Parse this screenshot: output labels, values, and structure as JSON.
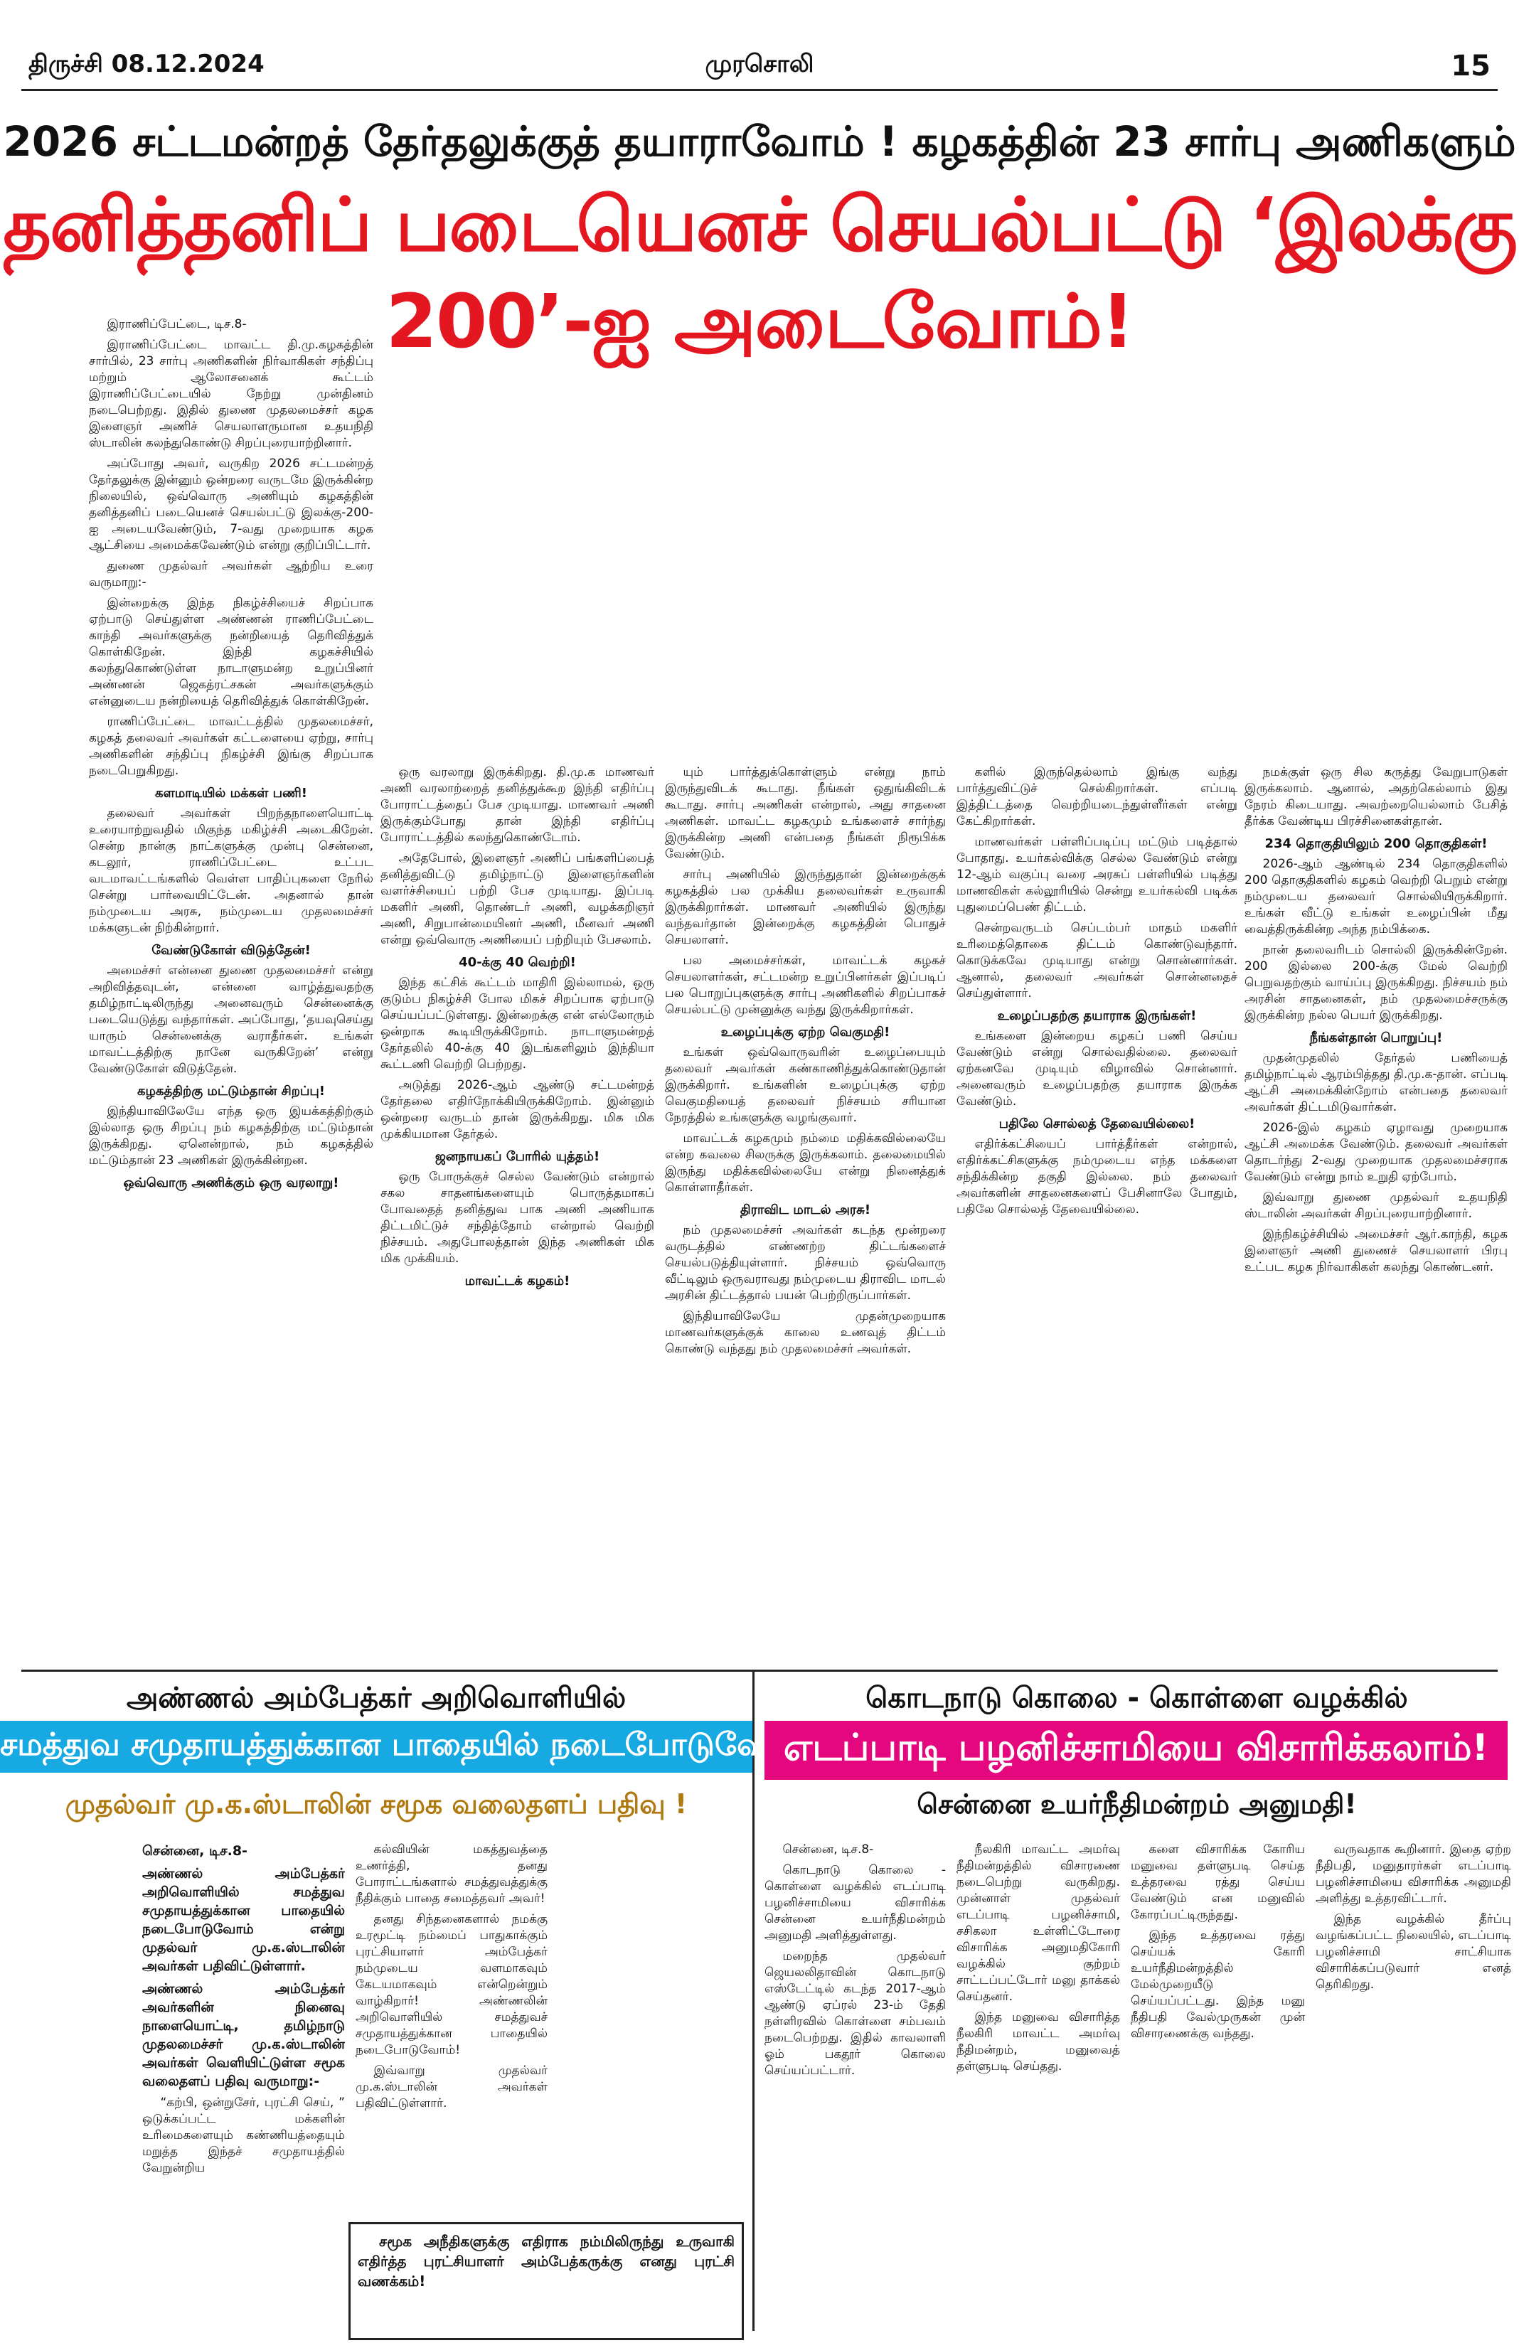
{
  "header": {
    "edition": "திருச்சி 08.12.2024",
    "paper": "முரசொலி",
    "page": "15"
  },
  "lead": {
    "kicker": "2026 சட்டமன்றத் தேர்தலுக்குத் தயாராவோம் ! கழகத்தின் 23 சார்பு அணிகளும்",
    "headline": "தனித்தனிப் படையெனச் செயல்பட்டு ‘இலக்கு 200’-ஐ அடைவோம்!",
    "columns": [
      [
        {
          "text": "இராணிப்பேட்டை, டிச.8-"
        },
        {
          "text": "இராணிப்பேட்டை மாவட்ட தி.மு.கழகத்தின் சார்பில், 23 சார்பு அணிகளின் நிர்வாகிகள் சந்திப்பு மற்றும் ஆலோசனைக் கூட்டம் இராணிப்பேட்டையில் நேற்று முன்தினம் நடைபெற்றது. இதில் துணை முதலமைச்சர் கழக இளைஞர் அணிச் செயலாளருமான உதயநிதி ஸ்டாலின் கலந்துகொண்டு சிறப்புரையாற்றினார்."
        },
        {
          "text": "அப்போது அவர், வருகிற 2026 சட்டமன்றத் தேர்தலுக்கு இன்னும் ஒன்றரை வருடமே இருக்கின்ற நிலையில், ஒவ்வொரு அணியும் கழகத்தின் தனித்தனிப் படையெனச் செயல்பட்டு இலக்கு-200-ஐ அடையவேண்டும், 7-வது முறையாக கழக ஆட்சியை அமைக்கவேண்டும் என்று குறிப்பிட்டார்."
        },
        {
          "text": "துணை முதல்வர் அவர்கள் ஆற்றிய உரை வருமாறு:-"
        },
        {
          "text": "இன்றைக்கு இந்த நிகழ்ச்சியைச் சிறப்பாக ஏற்பாடு செய்துள்ள அண்ணன் ராணிப்பேட்டை காந்தி அவர்களுக்கு நன்றியைத் தெரிவித்துக் கொள்கிறேன். இந்தி கழகச்சியில் கலந்துகொண்டுள்ள நாடாளுமன்ற உறுப்பினர் அண்ணன் ஜெகத்ரட்சகன் அவர்களுக்கும் என்னுடைய நன்றியைத் தெரிவித்துக் கொள்கிறேன்."
        },
        {
          "text": "ராணிப்பேட்டை மாவட்டத்தில் முதலமைச்சர், கழகத் தலைவர் அவர்கள் கட்டளையை ஏற்று, சார்பு அணிகளின் சந்திப்பு நிகழ்ச்சி இங்கு சிறப்பாக நடைபெறுகிறது."
        },
        {
          "heading": "களமாடியில் மக்கள் பணி!"
        },
        {
          "text": "தலைவர் அவர்கள் பிறந்தநாளையொட்டி உரையாற்றுவதில் மிகுந்த மகிழ்ச்சி அடைகிறேன். சென்ற நான்கு நாட்களுக்கு முன்பு சென்னை, கடலூர், ராணிப்பேட்டை உட்பட வடமாவட்டங்களில் வெள்ள பாதிப்புகளை நேரில் சென்று பார்வையிட்டேன். அதனால் தான் நம்முடைய அரசு, நம்முடைய முதலமைச்சர் மக்களுடன் நிற்கின்றார்."
        },
        {
          "heading": "வேண்டுகோள் விடுத்தேன்!"
        },
        {
          "text": "அமைச்சர் என்னை துணை முதலமைச்சர் என்று அறிவித்தவுடன், என்னை வாழ்த்துவதற்கு தமிழ்நாட்டிலிருந்து அனைவரும் சென்னைக்கு படையெடுத்து வந்தார்கள். அப்போது, ‘தயவுசெய்து யாரும் சென்னைக்கு வராதீர்கள். உங்கள் மாவட்டத்திற்கு நானே வருகிறேன்’ என்று வேண்டுகோள் விடுத்தேன்."
        },
        {
          "heading": "கழகத்திற்கு மட்டும்தான் சிறப்பு!"
        },
        {
          "text": "இந்தியாவிலேயே எந்த ஒரு இயக்கத்திற்கும் இல்லாத ஒரு சிறப்பு நம் கழகத்திற்கு மட்டும்தான் இருக்கிறது. ஏனென்றால், நம் கழகத்தில் மட்டும்தான் 23 அணிகள் இருக்கின்றன."
        },
        {
          "heading": "ஒவ்வொரு அணிக்கும் ஒரு வரலாறு!"
        }
      ],
      [
        {
          "text": "ஒரு வரலாறு இருக்கிறது. தி.மு.க மாணவர் அணி வரலாற்றைத் தனித்துக்கூற இந்தி எதிர்ப்பு போராட்டத்தைப் பேச முடியாது. மாணவர் அணி இருக்கும்போது தான் இந்தி எதிர்ப்பு போராட்டத்தில் கலந்துகொண்டோம்."
        },
        {
          "text": "அதேபோல், இளைஞர் அணிப் பங்களிப்பைத் தனித்துவிட்டு தமிழ்நாட்டு இளைஞர்களின் வளர்ச்சியைப் பற்றி பேச முடியாது. இப்படி மகளிர் அணி, தொண்டர் அணி, வழக்கறிஞர் அணி, சிறுபான்மையினர் அணி, மீனவர் அணி என்று ஒவ்வொரு அணியைப் பற்றியும் பேசலாம்."
        },
        {
          "heading": "40-க்கு 40 வெற்றி!"
        },
        {
          "text": "இந்த கட்சிக் கூட்டம் மாதிரி இல்லாமல், ஒரு குடும்ப நிகழ்ச்சி போல மிகச் சிறப்பாக ஏற்பாடு செய்யப்பட்டுள்ளது. இன்றைக்கு என் எல்லோரும் ஒன்றாக கூடியிருக்கிறோம். நாடாளுமன்றத் தேர்தலில் 40-க்கு 40 இடங்களிலும் இந்தியா கூட்டணி வெற்றி பெற்றது."
        },
        {
          "text": "அடுத்து 2026-ஆம் ஆண்டு சட்டமன்றத் தேர்தலை எதிர்நோக்கியிருக்கிறோம். இன்னும் ஒன்றரை வருடம் தான் இருக்கிறது. மிக மிக முக்கியமான தேர்தல்."
        },
        {
          "heading": "ஜனநாயகப் போரில் யுத்தம்!"
        },
        {
          "text": "ஒரு போருக்குச் செல்ல வேண்டும் என்றால் சகல சாதனங்களையும் பொருத்தமாகப் போவதைத் தனித்துவ பாக அணி அணியாக திட்டமிட்டுச் சந்தித்தோம் என்றால் வெற்றி நிச்சயம். அதுபோலத்தான் இந்த அணிகள் மிக மிக முக்கியம்."
        },
        {
          "heading": "மாவட்டக் கழகம்!"
        }
      ],
      [
        {
          "text": "யும் பார்த்துக்கொள்ளும் என்று நாம் இருந்துவிடக் கூடாது. நீங்கள் ஒதுங்கிவிடக் கூடாது. சார்பு அணிகள் என்றால், அது சாதனை அணிகள். மாவட்ட கழகமும் உங்களைச் சார்ந்து இருக்கின்ற அணி என்பதை நீங்கள் நிரூபிக்க வேண்டும்."
        },
        {
          "text": "சார்பு அணியில் இருந்துதான் இன்றைக்குக் கழகத்தில் பல முக்கிய தலைவர்கள் உருவாகி இருக்கிறார்கள். மாணவர் அணியில் இருந்து வந்தவர்தான் இன்றைக்கு கழகத்தின் பொதுச் செயலாளர்."
        },
        {
          "text": "பல அமைச்சர்கள், மாவட்டக் கழகச் செயலாளர்கள், சட்டமன்ற உறுப்பினர்கள் இப்படிப் பல பொறுப்புகளுக்கு சார்பு அணிகளில் சிறப்பாகச் செயல்பட்டு முன்னுக்கு வந்து இருக்கிறார்கள்."
        },
        {
          "heading": "உழைப்புக்கு ஏற்ற வெகுமதி!"
        },
        {
          "text": "உங்கள் ஒவ்வொருவரின் உழைப்பையும் தலைவர் அவர்கள் கண்காணித்துக்கொண்டுதான் இருக்கிறார். உங்களின் உழைப்புக்கு ஏற்ற வெகுமதியைத் தலைவர் நிச்சயம் சரியான நேரத்தில் உங்களுக்கு வழங்குவார்."
        },
        {
          "text": "மாவட்டக் கழகமும் நம்மை மதிக்கவில்லையே என்ற கவலை சிலருக்கு இருக்கலாம். தலைமையில் இருந்து மதிக்கவில்லையே என்று நினைத்துக் கொள்ளாதீர்கள்."
        },
        {
          "heading": "திராவிட மாடல் அரசு!"
        },
        {
          "text": "நம் முதலமைச்சர் அவர்கள் கடந்த மூன்றரை வருடத்தில் எண்ணற்ற திட்டங்களைச் செயல்படுத்தியுள்ளார். நிச்சயம் ஒவ்வொரு வீட்டிலும் ஒருவராவது நம்முடைய திராவிட மாடல் அரசின் திட்டத்தால் பயன் பெற்றிருப்பார்கள்."
        },
        {
          "text": "இந்தியாவிலேயே முதன்முறையாக மாணவர்களுக்குக் காலை உணவுத் திட்டம் கொண்டு வந்தது நம் முதலமைச்சர் அவர்கள்."
        }
      ],
      [
        {
          "text": "களில் இருந்தெல்லாம் இங்கு வந்து பார்த்துவிட்டுச் செல்கிறார்கள். எப்படி இத்திட்டத்தை வெற்றியடைந்துள்ளீர்கள் என்று கேட்கிறார்கள்."
        },
        {
          "text": "மாணவர்கள் பள்ளிப்படிப்பு மட்டும் படித்தால் போதாது. உயர்கல்விக்கு செல்ல வேண்டும் என்று 12-ஆம் வகுப்பு வரை அரசுப் பள்ளியில் படித்து மாணவிகள் கல்லூரியில் சென்று உயர்கல்வி படிக்க புதுமைப்பெண் திட்டம்."
        },
        {
          "text": "சென்றவருடம் செப்டம்பர் மாதம் மகளிர் உரிமைத்தொகை திட்டம் கொண்டுவந்தார். கொடுக்கவே முடியாது என்று சொன்னார்கள். ஆனால், தலைவர் அவர்கள் சொன்னதைச் செய்துள்ளார்."
        },
        {
          "heading": "உழைப்பதற்கு தயாராக இருங்கள்!"
        },
        {
          "text": "உங்களை இன்றைய கழகப் பணி செய்ய வேண்டும் என்று சொல்வதில்லை. தலைவர் ஏற்கனவே முடியும் விழாவில் சொன்னார். அனைவரும் உழைப்பதற்கு தயாராக இருக்க வேண்டும்."
        },
        {
          "heading": "பதிலே சொல்லத் தேவையில்லை!"
        },
        {
          "text": "எதிர்க்கட்சியைப் பார்த்தீர்கள் என்றால், எதிர்க்கட்சிகளுக்கு நம்முடைய எந்த மக்களை சந்திக்கின்ற தகுதி இல்லை. நம் தலைவர் அவர்களின் சாதனைகளைப் பேசினாலே போதும், பதிலே சொல்லத் தேவையில்லை."
        }
      ],
      [
        {
          "text": "நமக்குள் ஒரு சில கருத்து வேறுபாடுகள் இருக்கலாம். ஆனால், அதற்கெல்லாம் இது நேரம் கிடையாது. அவற்றையெல்லாம் பேசித் தீர்க்க வேண்டிய பிரச்சினைகள்தான்."
        },
        {
          "heading": "234 தொகுதியிலும் 200 தொகுதிகள்!"
        },
        {
          "text": "2026-ஆம் ஆண்டில் 234 தொகுதிகளில் 200 தொகுதிகளில் கழகம் வெற்றி பெறும் என்று நம்முடைய தலைவர் சொல்லியிருக்கிறார். உங்கள் வீட்டு உங்கள் உழைப்பின் மீது வைத்திருக்கின்ற அந்த நம்பிக்கை."
        },
        {
          "text": "நான் தலைவரிடம் சொல்லி இருக்கின்றேன். 200 இல்லை 200-க்கு மேல் வெற்றி பெறுவதற்கும் வாய்ப்பு இருக்கிறது. நிச்சயம் நம் அரசின் சாதனைகள், நம் முதலமைச்சருக்கு இருக்கின்ற நல்ல பெயர் இருக்கிறது."
        },
        {
          "heading": "நீங்கள்தான் பொறுப்பு!"
        },
        {
          "text": "முதன்முதலில் தேர்தல் பணியைத் தமிழ்நாட்டில் ஆரம்பித்தது தி.மு.க-தான். எப்படி ஆட்சி அமைக்கின்றோம் என்பதை தலைவர் அவர்கள் திட்டமிடுவார்கள்."
        },
        {
          "text": "2026-இல் கழகம் ஏழாவது முறையாக ஆட்சி அமைக்க வேண்டும். தலைவர் அவர்கள் தொடர்ந்து 2-வது முறையாக முதலமைச்சராக வேண்டும் என்று நாம் உறுதி ஏற்போம்."
        },
        {
          "text": "இவ்வாறு துணை முதல்வர் உதயநிதி ஸ்டாலின் அவர்கள் சிறப்புரையாற்றினார்."
        },
        {
          "text": "இந்நிகழ்ச்சியில் அமைச்சர் ஆர்.காந்தி, கழக இளைஞர் அணி துணைச் செயலாளர் பிரபு உட்பட கழக நிர்வாகிகள் கலந்து கொண்டனர்."
        }
      ]
    ]
  },
  "left_story": {
    "kicker": "அண்ணல் அம்பேத்கர் அறிவொளியில்",
    "headline": "சமத்துவ சமுதாயத்துக்கான பாதையில் நடைபோடுவோம் !",
    "subhead": "முதல்வர் மு.க.ஸ்டாலின் சமூக வலைதளப் பதிவு !",
    "columns": [
      [
        {
          "lead": "சென்னை, டிச.8-"
        },
        {
          "lead": "அண்ணல் அம்பேத்கர் அறிவொளியில் சமத்துவ சமுதாயத்துக்கான பாதையில் நடைபோடுவோம் என்று முதல்வர் மு.க.ஸ்டாலின் அவர்கள் பதிவிட்டுள்ளார்."
        },
        {
          "lead": "அண்ணல் அம்பேத்கர் அவர்களின் நினைவு நாளையொட்டி, தமிழ்நாடு முதலமைச்சர் மு.க.ஸ்டாலின் அவர்கள் வெளியிட்டுள்ள சமூக வலைதளப் பதிவு வருமாறு:-"
        },
        {
          "text": "“கற்பி, ஒன்றுசேர், புரட்சி செய், ” ஒடுக்கப்பட்ட மக்களின் உரிமைகளையும் கண்ணியத்தையும் மறுத்த இந்தச் சமுதாயத்தில் வேறுன்றிய"
        }
      ],
      [
        {
          "text": "கல்வியின் மகத்துவத்தை உணர்த்தி, தனது போராட்டங்களால் சமத்துவத்துக்கு நீதிக்கும் பாதை சமைத்தவர் அவர்!"
        },
        {
          "text": "தனது சிந்தனைகளால் நமக்கு உரமூட்டி நம்மைப் பாதுகாக்கும் புரட்சியாளர் அம்பேத்கர் நம்முடைய வளமாகவும் கேடயமாகவும் என்றென்றும் வாழ்கிறார்! அண்ணலின் அறிவொளியில் சமத்துவச் சமுதாயத்துக்கான பாதையில் நடைபோடுவோம்!"
        },
        {
          "text": "இவ்வாறு முதல்வர் மு.க.ஸ்டாலின் அவர்கள் பதிவிட்டுள்ளார்."
        }
      ],
      [
        {
          "text": "சமூக அநீதிகளுக்கு எதிராக நம்மிலிருந்து உருவாகி எதிர்த்த புரட்சியாளர் அம்பேத்கருக்கு எனது புரட்சி வணக்கம்!"
        }
      ]
    ]
  },
  "right_story": {
    "kicker": "கொடநாடு கொலை - கொள்ளை வழக்கில்",
    "headline": "எடப்பாடி பழனிச்சாமியை விசாரிக்கலாம்!",
    "subhead": "சென்னை உயர்நீதிமன்றம் அனுமதி!",
    "columns": [
      [
        {
          "text": "சென்னை, டிச.8-"
        },
        {
          "text": "கொடநாடு கொலை - கொள்ளை வழக்கில் எடப்பாடி பழனிச்சாமியை விசாரிக்க சென்னை உயர்நீதிமன்றம் அனுமதி அளித்துள்ளது."
        },
        {
          "text": "மறைந்த முதல்வர் ஜெயலலிதாவின் கொடநாடு எஸ்டேட்டில் கடந்த 2017-ஆம் ஆண்டு ஏப்ரல் 23-ம் தேதி நள்ளிரவில் கொள்ளை சம்பவம் நடைபெற்றது. இதில் காவலாளி ஓம் பகதூர் கொலை செய்யப்பட்டார்."
        }
      ],
      [
        {
          "text": "நீலகிரி மாவட்ட அமர்வு நீதிமன்றத்தில் விசாரணை நடைபெற்று வருகிறது. முன்னாள் முதல்வர் எடப்பாடி பழனிச்சாமி, சசிகலா உள்ளிட்டோரை விசாரிக்க அனுமதிகோரி வழக்கில் குற்றம் சாட்டப்பட்டோர் மனு தாக்கல் செய்தனர்."
        },
        {
          "text": "இந்த மனுவை விசாரித்த நீலகிரி மாவட்ட அமர்வு நீதிமன்றம், மனுவைத் தள்ளுபடி செய்தது."
        }
      ],
      [
        {
          "text": "களை விசாரிக்க கோரிய மனுவை தள்ளுபடி செய்த உத்தரவை ரத்து செய்ய வேண்டும் என மனுவில் கோரப்பட்டிருந்தது."
        },
        {
          "text": "இந்த உத்தரவை ரத்து செய்யக் கோரி உயர்நீதிமன்றத்தில் மேல்முறையீடு செய்யப்பட்டது. இந்த மனு நீதிபதி வேல்முருகன் முன் விசாரணைக்கு வந்தது."
        }
      ],
      [
        {
          "text": "வருவதாக கூறினார். இதை ஏற்ற நீதிபதி, மனுதாரர்கள் எடப்பாடி பழனிச்சாமியை விசாரிக்க அனுமதி அளித்து உத்தரவிட்டார்."
        },
        {
          "text": "இந்த வழக்கில் தீர்ப்பு வழங்கப்பட்ட நிலையில், எடப்பாடி பழனிச்சாமி சாட்சியாக விசாரிக்கப்படுவார் எனத் தெரிகிறது."
        }
      ]
    ]
  }
}
